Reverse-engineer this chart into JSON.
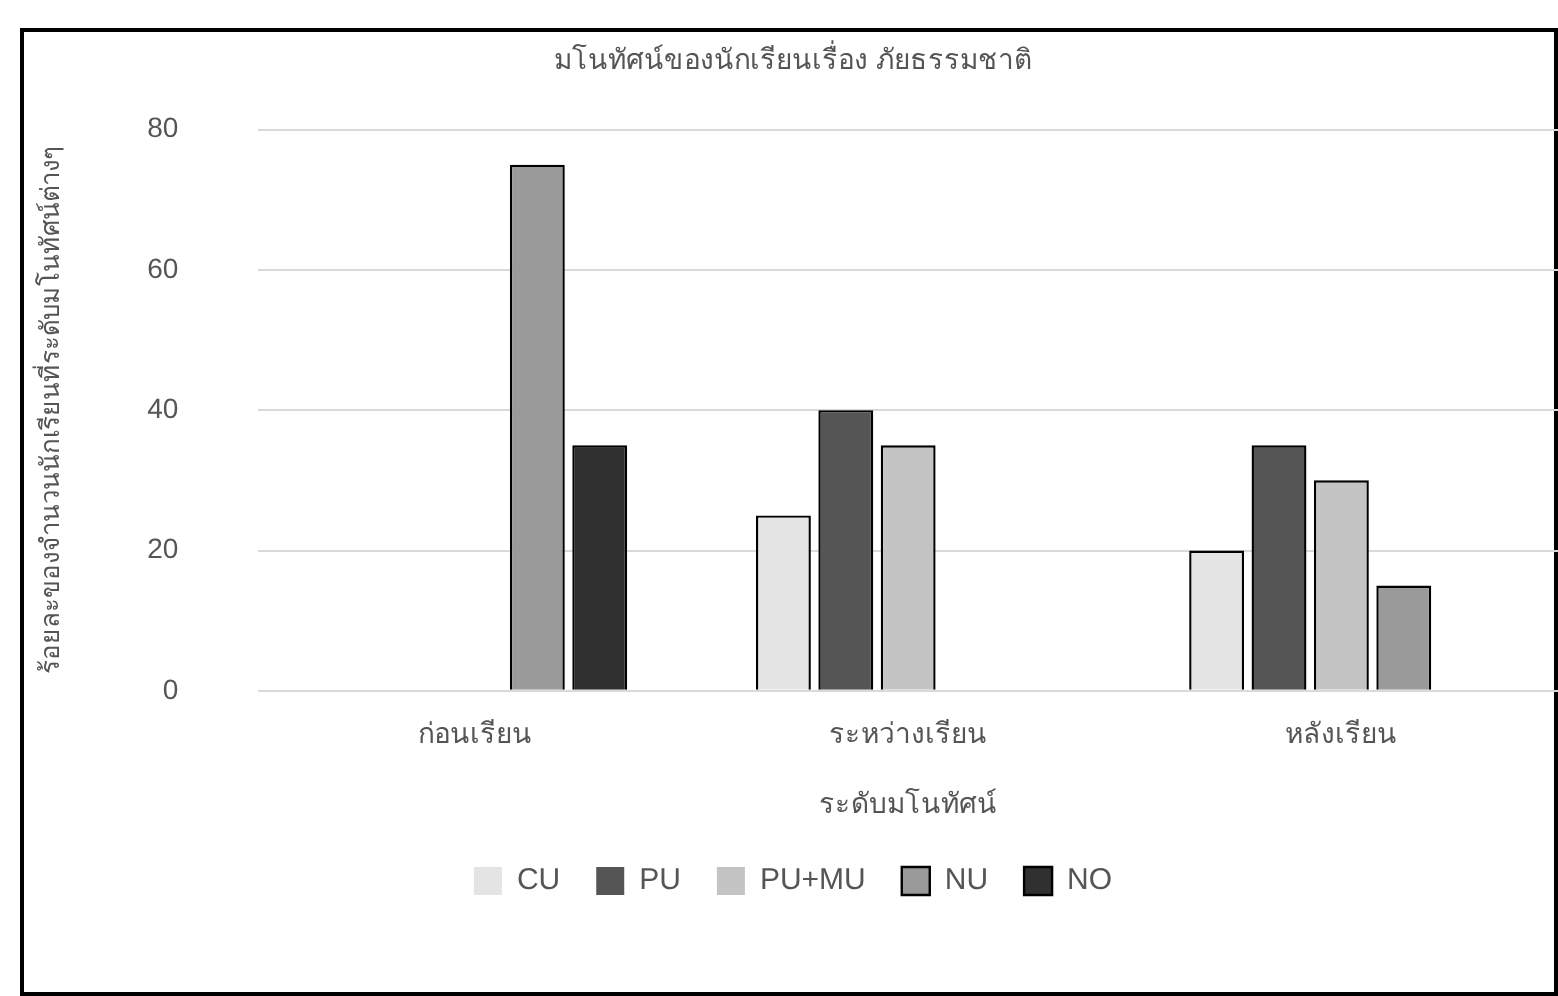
{
  "chart_data": {
    "type": "bar",
    "title": "มโนทัศน์ของนักเรียนเรื่อง ภัยธรรมชาติ",
    "xlabel": "ระดับมโนทัศน์",
    "ylabel": "ร้อยละของจำนวนนักเรียนที่ระดับมโนทัศน์ต่างๆ",
    "categories": [
      "ก่อนเรียน",
      "ระหว่างเรียน",
      "หลังเรียน"
    ],
    "series": [
      {
        "name": "CU",
        "color": "#e4e4e4",
        "values": [
          0,
          25,
          20
        ]
      },
      {
        "name": "PU",
        "color": "#555555",
        "values": [
          0,
          40,
          35
        ]
      },
      {
        "name": "PU+MU",
        "color": "#c4c4c4",
        "values": [
          0,
          35,
          30
        ]
      },
      {
        "name": "NU",
        "color": "#9a9a9a",
        "values": [
          75,
          0,
          15
        ]
      },
      {
        "name": "NO",
        "color": "#303030",
        "values": [
          35,
          0,
          0
        ]
      }
    ],
    "ylim": [
      0,
      80
    ],
    "yticks": [
      0,
      20,
      40,
      60,
      80
    ],
    "grid": "y",
    "legend": "bottom"
  }
}
